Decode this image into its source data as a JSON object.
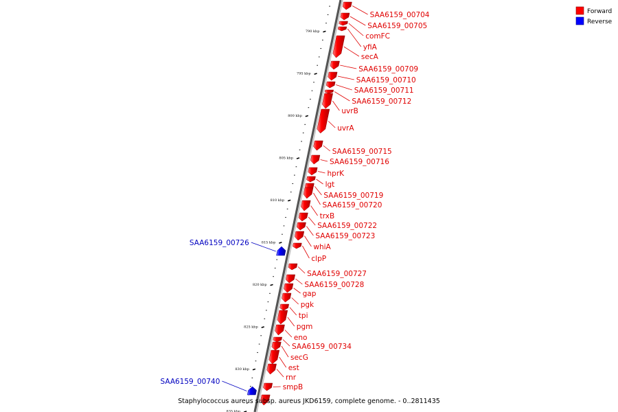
{
  "legend": [
    {
      "label": "Forward",
      "color": "#ff0000"
    },
    {
      "label": "Reverse",
      "color": "#0000ff"
    }
  ],
  "caption": "Staphylococcus aureus subsp. aureus JKD6159, complete genome. - 0..2811435",
  "position_unit": "kbp",
  "ticks": [
    {
      "kbp": 790,
      "label": "790 kbp"
    },
    {
      "kbp": 795,
      "label": "795 kbp"
    },
    {
      "kbp": 800,
      "label": "800 kbp"
    },
    {
      "kbp": 805,
      "label": "805 kbp"
    },
    {
      "kbp": 810,
      "label": "810 kbp"
    },
    {
      "kbp": 815,
      "label": "815 kbp"
    },
    {
      "kbp": 820,
      "label": "820 kbp"
    },
    {
      "kbp": 825,
      "label": "825 kbp"
    },
    {
      "kbp": 830,
      "label": "830 kbp"
    },
    {
      "kbp": 835,
      "label": "835 kbp"
    }
  ],
  "genes": [
    {
      "name": "SAA6159_00704",
      "strand": "forward"
    },
    {
      "name": "SAA6159_00705",
      "strand": "forward"
    },
    {
      "name": "comFC",
      "strand": "forward"
    },
    {
      "name": "yfiA",
      "strand": "forward"
    },
    {
      "name": "secA",
      "strand": "forward"
    },
    {
      "name": "SAA6159_00709",
      "strand": "forward"
    },
    {
      "name": "SAA6159_00710",
      "strand": "forward"
    },
    {
      "name": "SAA6159_00711",
      "strand": "forward"
    },
    {
      "name": "SAA6159_00712",
      "strand": "forward"
    },
    {
      "name": "uvrB",
      "strand": "forward"
    },
    {
      "name": "uvrA",
      "strand": "forward"
    },
    {
      "name": "SAA6159_00715",
      "strand": "forward"
    },
    {
      "name": "SAA6159_00716",
      "strand": "forward"
    },
    {
      "name": "hprK",
      "strand": "forward"
    },
    {
      "name": "lgt",
      "strand": "forward"
    },
    {
      "name": "SAA6159_00719",
      "strand": "forward"
    },
    {
      "name": "SAA6159_00720",
      "strand": "forward"
    },
    {
      "name": "trxB",
      "strand": "forward"
    },
    {
      "name": "SAA6159_00722",
      "strand": "forward"
    },
    {
      "name": "SAA6159_00723",
      "strand": "forward"
    },
    {
      "name": "whiA",
      "strand": "forward"
    },
    {
      "name": "clpP",
      "strand": "forward"
    },
    {
      "name": "SAA6159_00726",
      "strand": "reverse"
    },
    {
      "name": "SAA6159_00727",
      "strand": "forward"
    },
    {
      "name": "SAA6159_00728",
      "strand": "forward"
    },
    {
      "name": "gap",
      "strand": "forward"
    },
    {
      "name": "pgk",
      "strand": "forward"
    },
    {
      "name": "tpi",
      "strand": "forward"
    },
    {
      "name": "pgm",
      "strand": "forward"
    },
    {
      "name": "eno",
      "strand": "forward"
    },
    {
      "name": "SAA6159_00734",
      "strand": "forward"
    },
    {
      "name": "secG",
      "strand": "forward"
    },
    {
      "name": "est",
      "strand": "forward"
    },
    {
      "name": "rnr",
      "strand": "forward"
    },
    {
      "name": "SAA6159_00740",
      "strand": "reverse"
    },
    {
      "name": "smpB",
      "strand": "forward"
    }
  ]
}
